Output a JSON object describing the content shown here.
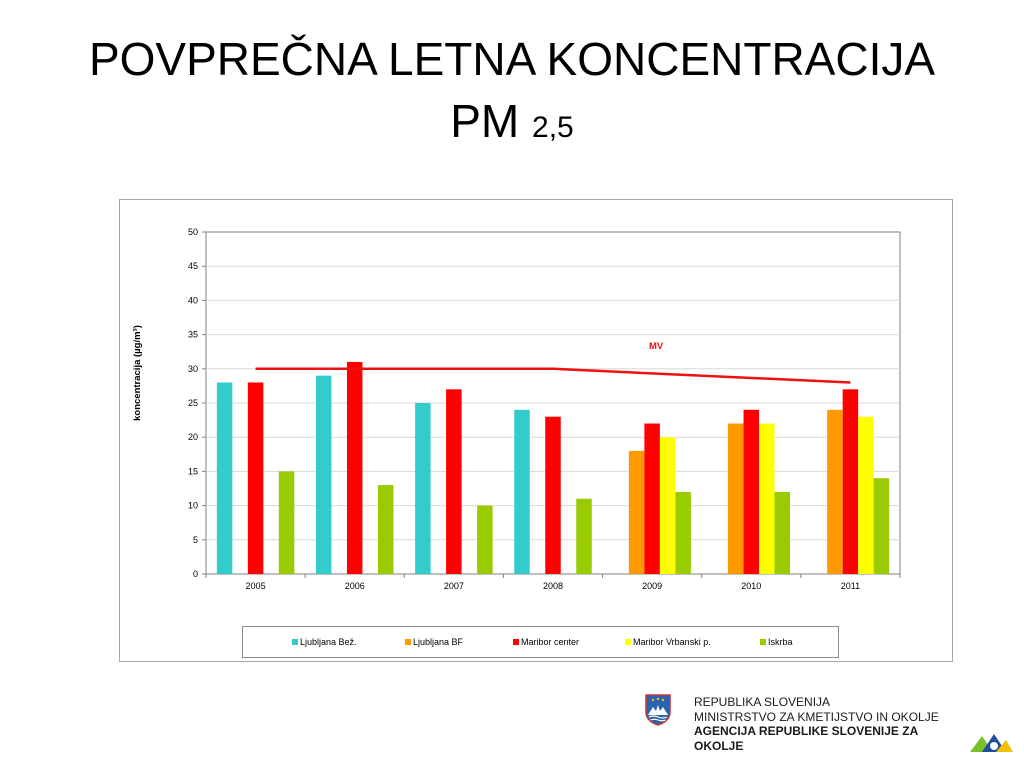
{
  "title": {
    "main": "POVPREČNA LETNA KONCENTRACIJA",
    "line2": "PM",
    "subscript": "2,5"
  },
  "chart_data": {
    "type": "bar",
    "categories": [
      "2005",
      "2006",
      "2007",
      "2008",
      "2009",
      "2010",
      "2011"
    ],
    "ylabel": "koncentracija (µg/m³)",
    "ylim": [
      0,
      50
    ],
    "yticks": [
      0,
      5,
      10,
      15,
      20,
      25,
      30,
      35,
      40,
      45,
      50
    ],
    "grid": true,
    "legend_position": "bottom",
    "series": [
      {
        "name": "Ljubljana Bež.",
        "color": "#33cccc",
        "values": [
          28,
          29,
          25,
          24,
          null,
          null,
          null
        ]
      },
      {
        "name": "Ljubljana BF",
        "color": "#ff9900",
        "values": [
          null,
          null,
          null,
          null,
          18,
          22,
          24
        ]
      },
      {
        "name": "Maribor center",
        "color": "#ff0000",
        "values": [
          28,
          31,
          27,
          23,
          22,
          24,
          27
        ]
      },
      {
        "name": "Maribor Vrbanski p.",
        "color": "#ffff00",
        "values": [
          null,
          null,
          null,
          null,
          20,
          22,
          23
        ]
      },
      {
        "name": "Iskrba",
        "color": "#99cc00",
        "values": [
          15,
          13,
          10,
          11,
          12,
          12,
          14
        ]
      }
    ],
    "limit_line": {
      "label": "MV",
      "color": "#ee1111",
      "points": [
        [
          "2005",
          30
        ],
        [
          "2008",
          30
        ],
        [
          "2011",
          28
        ]
      ]
    }
  },
  "footer": {
    "line1": "REPUBLIKA SLOVENIJA",
    "line2": "MINISTRSTVO ZA KMETIJSTVO IN OKOLJE",
    "line3": "AGENCIJA REPUBLIKE SLOVENIJE ZA",
    "line4": "OKOLJE"
  }
}
